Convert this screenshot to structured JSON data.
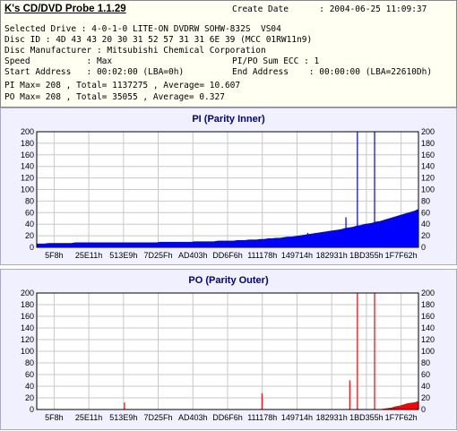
{
  "app": {
    "title": "K's CD/DVD Probe 1.1.29"
  },
  "info": {
    "create_date_label": "Create Date",
    "create_date_value": ": 2004-06-25 11:09:37",
    "selected_drive": "Selected Drive : 4-0-1-0 LITE-ON DVDRW SOHW-832S  VS04",
    "disc_id": "Disc ID : 4D 43 43 20 30 31 52 57 31 31 6E 39 (MCC 01RW11n9)",
    "disc_manufacturer": "Disc Manufacturer : Mitsubishi Chemical Corporation",
    "speed": "Speed           : Max",
    "pipo_sum": "PI/PO Sum ECC : 1",
    "start_address": "Start Address   : 00:02:00 (LBA=0h)",
    "end_address": "End Address    : 00:00:00 (LBA=22610Dh)",
    "pi_stats": "PI Max= 208 , Total= 1137275 , Average= 10.607",
    "po_stats": "PO Max= 208 , Total= 35055 , Average= 0.327"
  },
  "colors": {
    "pi": "#0000ff",
    "po": "#ff0000",
    "grid": "#c8c8c8",
    "axis": "#000000"
  },
  "chart_data": [
    {
      "type": "area",
      "title": "PI (Parity Inner)",
      "xlabel": "",
      "ylabel": "",
      "ylim": [
        0,
        200
      ],
      "yticks": [
        0,
        20,
        40,
        60,
        80,
        100,
        120,
        140,
        160,
        180,
        200
      ],
      "xticks": [
        "5F8h",
        "25E11h",
        "513E9h",
        "7D25Fh",
        "AD403h",
        "DD6F6h",
        "111178h",
        "149714h",
        "182931h",
        "1BD355h",
        "1F7F62h"
      ],
      "grid": true,
      "series": [
        {
          "values": [
            6,
            6,
            6,
            7,
            7,
            7,
            7,
            7,
            7,
            7,
            8,
            8,
            8,
            8,
            8,
            8,
            8,
            8,
            8,
            8,
            8,
            8,
            8,
            8,
            8,
            8,
            8,
            8,
            8,
            8,
            8,
            8,
            9,
            9,
            9,
            9,
            9,
            9,
            9,
            9,
            9,
            10,
            10,
            10,
            10,
            10,
            10,
            11,
            11,
            11,
            11,
            11,
            12,
            12,
            12,
            13,
            13,
            13,
            14,
            14,
            15,
            15,
            16,
            16,
            17,
            18,
            18,
            19,
            20,
            21,
            22,
            23,
            24,
            25,
            26,
            27,
            28,
            29,
            30,
            31,
            33,
            34,
            35,
            37,
            38,
            40,
            41,
            42,
            44,
            45,
            47,
            49,
            51,
            53,
            55,
            57,
            59,
            61,
            63,
            66
          ],
          "spikes": [
            [
              0.71,
              25
            ],
            [
              0.81,
              52
            ],
            [
              0.84,
              200
            ],
            [
              0.885,
              200
            ]
          ]
        }
      ]
    },
    {
      "type": "area",
      "title": "PO (Parity Outer)",
      "xlabel": "",
      "ylabel": "",
      "ylim": [
        0,
        200
      ],
      "yticks": [
        0,
        20,
        40,
        60,
        80,
        100,
        120,
        140,
        160,
        180,
        200
      ],
      "xticks": [
        "5F8h",
        "25E11h",
        "513E9h",
        "7D25Fh",
        "AD403h",
        "DD6F6h",
        "111178h",
        "149714h",
        "182931h",
        "1BD355h",
        "1F7F62h"
      ],
      "grid": true,
      "series": [
        {
          "values": [
            0,
            0,
            0,
            0,
            0,
            0,
            0,
            0,
            0,
            0,
            0,
            0,
            0,
            0,
            0,
            0,
            0,
            0,
            0,
            0,
            0,
            0,
            0,
            0,
            0,
            0,
            0,
            0,
            0,
            0,
            0,
            0,
            0,
            0,
            0,
            0,
            0,
            0,
            0,
            0,
            0,
            0,
            0,
            0,
            0,
            0,
            0,
            0,
            0,
            0,
            0,
            0,
            0,
            0,
            0,
            0,
            0,
            0,
            0,
            0,
            0,
            0,
            0,
            0,
            0,
            0,
            0,
            0,
            0,
            0,
            0,
            0,
            0,
            0,
            0,
            0,
            0,
            0,
            0,
            0,
            0,
            0,
            0,
            0,
            0,
            0,
            0,
            0,
            0,
            0,
            1,
            2,
            3,
            5,
            6,
            8,
            10,
            11,
            12,
            14
          ],
          "spikes": [
            [
              0.23,
              12
            ],
            [
              0.59,
              28
            ],
            [
              0.82,
              50
            ],
            [
              0.84,
              200
            ],
            [
              0.885,
              200
            ]
          ]
        }
      ]
    }
  ]
}
